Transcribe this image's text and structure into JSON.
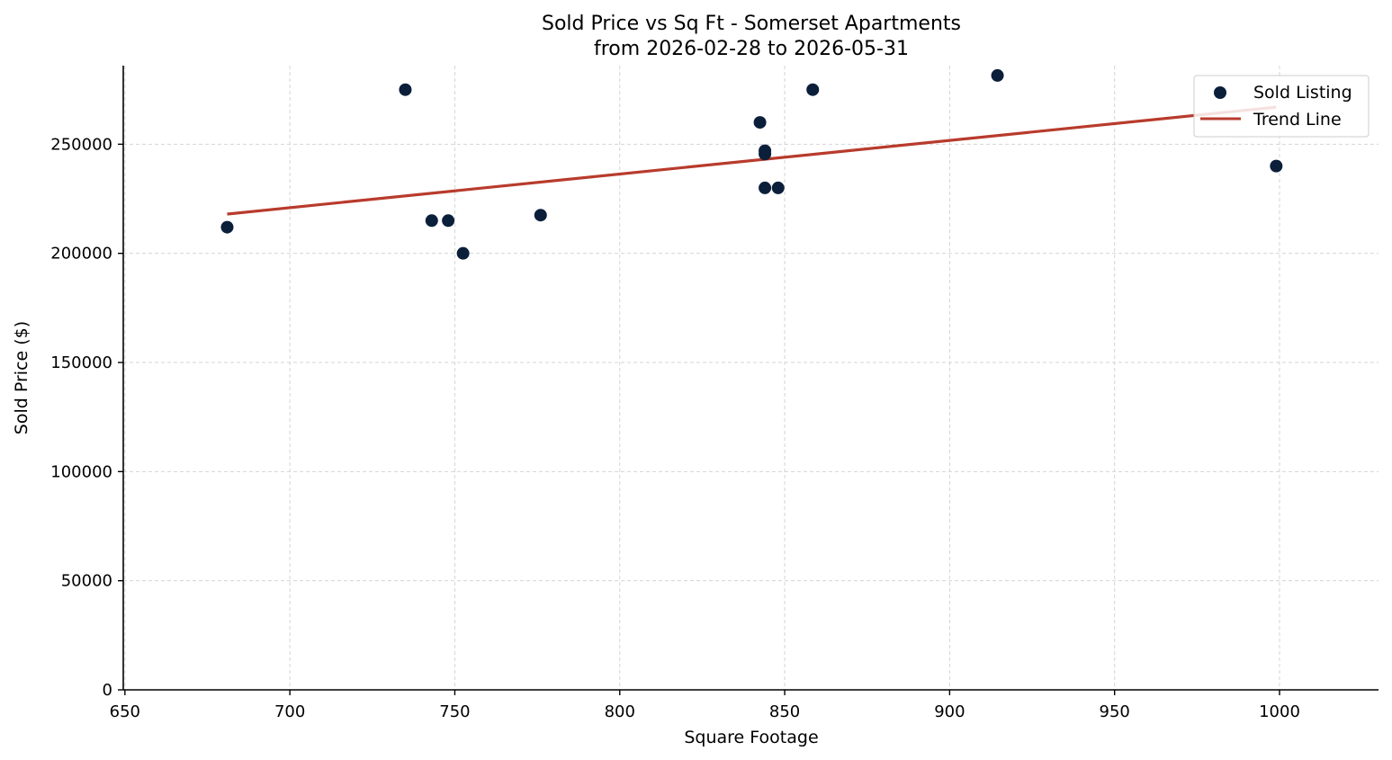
{
  "colors": {
    "points": "#0b1f3a",
    "trend": "#b83b2c",
    "grid": "#d4d4d4",
    "axis": "#000000"
  },
  "chart_data": {
    "type": "scatter",
    "title_line1": "Sold Price vs Sq Ft - Somerset Apartments",
    "title_line2": "from 2026-02-28 to 2026-05-31",
    "xlabel": "Square Footage",
    "ylabel": "Sold Price ($)",
    "xlim": [
      649.5,
      1030
    ],
    "ylim": [
      0,
      286000
    ],
    "xticks": [
      650,
      700,
      750,
      800,
      850,
      900,
      950,
      1000
    ],
    "yticks": [
      0,
      50000,
      100000,
      150000,
      200000,
      250000
    ],
    "grid": true,
    "legend_position": "top-right",
    "series": [
      {
        "name": "Sold Listing",
        "kind": "scatter",
        "points": [
          {
            "x": 681,
            "y": 212000
          },
          {
            "x": 735,
            "y": 275000
          },
          {
            "x": 743,
            "y": 215000
          },
          {
            "x": 748,
            "y": 215000
          },
          {
            "x": 752.5,
            "y": 200000
          },
          {
            "x": 776,
            "y": 217500
          },
          {
            "x": 842.5,
            "y": 260000
          },
          {
            "x": 844,
            "y": 247000
          },
          {
            "x": 844,
            "y": 245500
          },
          {
            "x": 844,
            "y": 230000
          },
          {
            "x": 848,
            "y": 230000
          },
          {
            "x": 858.5,
            "y": 275000
          },
          {
            "x": 914.5,
            "y": 281500
          },
          {
            "x": 999,
            "y": 240000
          }
        ]
      },
      {
        "name": "Trend Line",
        "kind": "line",
        "points": [
          {
            "x": 681,
            "y": 218000
          },
          {
            "x": 999,
            "y": 267000
          }
        ]
      }
    ]
  }
}
